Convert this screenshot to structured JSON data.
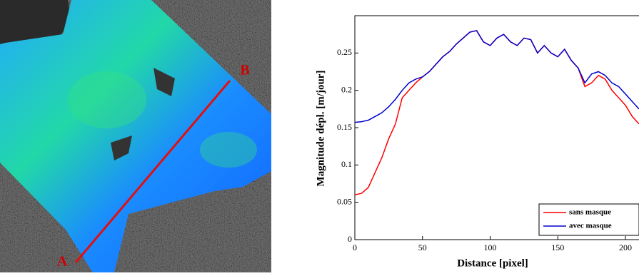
{
  "image": {
    "labels": [
      "A",
      "B"
    ]
  },
  "chart_data": {
    "type": "line",
    "xlabel": "Distance [pixel]",
    "ylabel": "Magnitude dépl. [m/jour]",
    "x": [
      0,
      5,
      10,
      15,
      20,
      25,
      30,
      35,
      40,
      45,
      50,
      55,
      60,
      65,
      70,
      75,
      80,
      85,
      90,
      95,
      100,
      105,
      110,
      115,
      120,
      125,
      130,
      135,
      140,
      145,
      150,
      155,
      160,
      165,
      170,
      175,
      180,
      185,
      190,
      195,
      200,
      205,
      210
    ],
    "series": [
      {
        "name": "sans masque",
        "color": "#ff0000",
        "values": [
          0.06,
          0.062,
          0.07,
          0.09,
          0.11,
          0.135,
          0.155,
          0.19,
          0.2,
          0.21,
          0.218,
          0.225,
          0.235,
          0.245,
          0.252,
          0.262,
          0.27,
          0.278,
          0.28,
          0.265,
          0.26,
          0.27,
          0.275,
          0.265,
          0.26,
          0.27,
          0.268,
          0.25,
          0.26,
          0.25,
          0.245,
          0.255,
          0.24,
          0.23,
          0.205,
          0.21,
          0.22,
          0.215,
          0.2,
          0.19,
          0.18,
          0.165,
          0.155
        ]
      },
      {
        "name": "avec masque",
        "color": "#0000cc",
        "values": [
          0.157,
          0.158,
          0.16,
          0.165,
          0.17,
          0.178,
          0.188,
          0.2,
          0.21,
          0.215,
          0.218,
          0.225,
          0.235,
          0.245,
          0.252,
          0.262,
          0.27,
          0.278,
          0.28,
          0.265,
          0.26,
          0.27,
          0.275,
          0.265,
          0.26,
          0.27,
          0.268,
          0.25,
          0.26,
          0.25,
          0.245,
          0.255,
          0.24,
          0.23,
          0.21,
          0.222,
          0.225,
          0.22,
          0.21,
          0.205,
          0.195,
          0.185,
          0.175
        ]
      }
    ],
    "xlim": [
      0,
      210
    ],
    "xticks": [
      0,
      50,
      100,
      150,
      200
    ],
    "ylim": [
      0,
      0.3
    ],
    "yticks": [
      0,
      0.05,
      0.1,
      0.15,
      0.2,
      0.25
    ],
    "legend": "lower right"
  }
}
